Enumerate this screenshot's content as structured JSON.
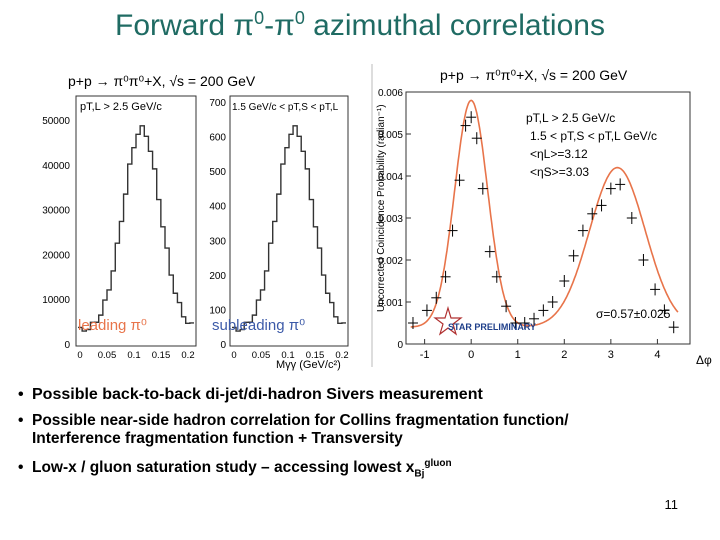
{
  "slide": {
    "title_pre": "Forward ",
    "title_pi1": "π",
    "title_sup1": "0",
    "title_dash": "-",
    "title_pi2": "π",
    "title_sup2": "0",
    "title_post": " azimuthal correlations",
    "page_number": "11"
  },
  "bullets": [
    {
      "text": "Possible back-to-back di-jet/di-hadron Sivers measurement"
    },
    {
      "text_line1": "Possible near-side hadron correlation for Collins fragmentation function/",
      "text_line2": "Interference fragmentation function + Transversity"
    },
    {
      "text_pre": "Low-x / gluon saturation study – accessing lowest x",
      "sub": "Bj",
      "sup": "gluon"
    }
  ],
  "left_figure": {
    "process_label": "p+p → π⁰π⁰+X, √s = 200 GeV",
    "panel1_cut": "pT,L > 2.5 GeV/c",
    "panel2_cut": "1.5 GeV/c < pT,S < pT,L",
    "panel1_label": "leading π⁰",
    "panel2_label": "subleading π⁰",
    "xaxis_label": "Mγγ (GeV/c²)",
    "panel1_yticks": [
      "50000",
      "40000",
      "30000",
      "20000",
      "10000",
      "0"
    ],
    "panel2_yticks": [
      "700",
      "600",
      "500",
      "400",
      "300",
      "200",
      "100",
      "0"
    ],
    "xticks": [
      "0",
      "0.05",
      "0.1",
      "0.15",
      "0.2"
    ]
  },
  "chart_data": {
    "type": "scatter",
    "title": "p+p → π⁰π⁰+X, √s = 200 GeV",
    "xlabel": "Δφ",
    "ylabel": "Uncorrected Coincidence Probability (radian⁻¹)",
    "xlim": [
      -1.4,
      4.7
    ],
    "ylim": [
      0,
      0.006
    ],
    "xticks": [
      "-1",
      "0",
      "1",
      "2",
      "3",
      "4"
    ],
    "yticks": [
      "0",
      "0.001",
      "0.002",
      "0.003",
      "0.004",
      "0.005",
      "0.006"
    ],
    "annotations": {
      "cut1": "pT,L > 2.5 GeV/c",
      "cut2": "1.5 < pT,S < pT,L GeV/c",
      "eta_l": "<ηL>=3.12",
      "eta_s": "<ηS>=3.03",
      "sigma": "σ=0.57±0.025",
      "preliminary": "STAR PRELIMINARY"
    },
    "series": [
      {
        "marker": "plus",
        "color": "#000000",
        "x": [
          -1.25,
          -0.95,
          -0.75,
          -0.55,
          -0.4,
          -0.25,
          -0.12,
          0.0,
          0.12,
          0.25,
          0.4,
          0.55,
          0.75,
          0.95,
          1.15,
          1.35,
          1.55,
          1.75,
          2.0,
          2.2,
          2.4,
          2.6,
          2.8,
          3.0,
          3.2,
          3.45,
          3.7,
          3.95,
          4.15,
          4.35
        ],
        "y": [
          0.0005,
          0.0008,
          0.0011,
          0.0016,
          0.0027,
          0.0039,
          0.0052,
          0.0054,
          0.0049,
          0.0037,
          0.0022,
          0.0016,
          0.0009,
          0.0005,
          0.0005,
          0.0006,
          0.0008,
          0.001,
          0.0015,
          0.0021,
          0.0027,
          0.0031,
          0.0033,
          0.0037,
          0.0038,
          0.003,
          0.002,
          0.0013,
          0.0008,
          0.0004
        ]
      }
    ],
    "fit": {
      "color": "#e8744a",
      "peaks": [
        0.0,
        3.14
      ],
      "sigma": 0.57
    }
  },
  "colors": {
    "title": "#1f6b63",
    "fit": "#e8744a",
    "panel_label": "#e8744a",
    "panel_label2": "#3c5aa8"
  }
}
